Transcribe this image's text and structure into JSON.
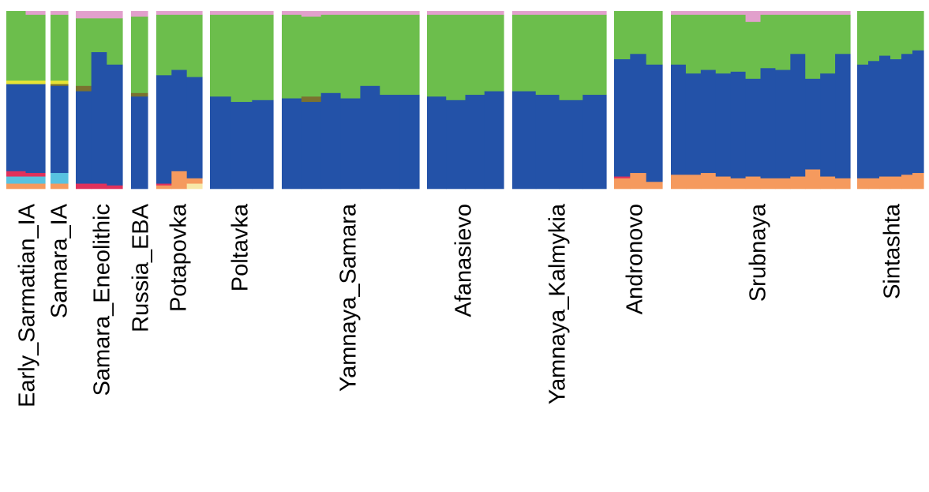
{
  "chart_data": {
    "type": "bar",
    "stacked": true,
    "normalized": true,
    "ylim": [
      0,
      1
    ],
    "grid": false,
    "legend": "none",
    "component_colors": {
      "orange": "#f59a5e",
      "cyan": "#58c2e0",
      "crimson": "#e0315b",
      "blue": "#2352a8",
      "olive": "#7a7230",
      "yellow": "#e6e335",
      "green": "#6cbe4c",
      "pink": "#e2a0cc"
    },
    "stack_order": [
      "orange",
      "cyan",
      "crimson",
      "blue",
      "olive",
      "yellow",
      "green",
      "pink"
    ],
    "groups": [
      {
        "label": "Early_Sarmatian_IA",
        "individuals": [
          {
            "cyan": 0.04,
            "orange": 0.03,
            "crimson": 0.03,
            "blue": 0.49,
            "yellow": 0.02,
            "green": 0.39
          },
          {
            "cyan": 0.04,
            "orange": 0.03,
            "crimson": 0.02,
            "blue": 0.5,
            "yellow": 0.02,
            "green": 0.37,
            "pink": 0.02
          }
        ]
      },
      {
        "label": "Samara_IA",
        "individuals": [
          {
            "cyan": 0.06,
            "orange": 0.03,
            "blue": 0.49,
            "olive": 0.01,
            "yellow": 0.02,
            "green": 0.37,
            "pink": 0.02
          }
        ]
      },
      {
        "label": "Samara_Eneolithic",
        "individuals": [
          {
            "crimson": 0.03,
            "blue": 0.52,
            "olive": 0.03,
            "green": 0.38,
            "pink": 0.04
          },
          {
            "crimson": 0.03,
            "blue": 0.74,
            "green": 0.19,
            "pink": 0.04
          },
          {
            "crimson": 0.02,
            "blue": 0.68,
            "green": 0.26,
            "pink": 0.04
          }
        ]
      },
      {
        "label": "Russia_EBA",
        "individuals": [
          {
            "blue": 0.52,
            "olive": 0.02,
            "green": 0.43,
            "pink": 0.03
          }
        ]
      },
      {
        "label": "Potapovka",
        "individuals": [
          {
            "orange": 0.02,
            "crimson": 0.01,
            "blue": 0.61,
            "green": 0.34,
            "pink": 0.02
          },
          {
            "orange": 0.1,
            "blue": 0.57,
            "green": 0.31,
            "pink": 0.02
          },
          {
            "cream": 0.03,
            "orange": 0.03,
            "blue": 0.57,
            "green": 0.35,
            "pink": 0.02
          }
        ]
      },
      {
        "label": "Poltavka",
        "individuals": [
          {
            "blue": 0.52,
            "green": 0.46,
            "pink": 0.02
          },
          {
            "blue": 0.49,
            "green": 0.49,
            "pink": 0.02
          },
          {
            "blue": 0.5,
            "green": 0.48,
            "pink": 0.02
          }
        ]
      },
      {
        "label": "Yamnaya_Samara",
        "individuals": [
          {
            "blue": 0.51,
            "green": 0.47,
            "pink": 0.02
          },
          {
            "blue": 0.49,
            "olive": 0.03,
            "green": 0.45,
            "pink": 0.03
          },
          {
            "blue": 0.54,
            "green": 0.44,
            "pink": 0.02
          },
          {
            "blue": 0.51,
            "green": 0.47,
            "pink": 0.02
          },
          {
            "blue": 0.58,
            "green": 0.4,
            "pink": 0.02
          },
          {
            "blue": 0.53,
            "green": 0.45,
            "pink": 0.02
          },
          {
            "blue": 0.53,
            "green": 0.45,
            "pink": 0.02
          }
        ]
      },
      {
        "label": "Afanasievo",
        "individuals": [
          {
            "blue": 0.52,
            "green": 0.46,
            "pink": 0.02
          },
          {
            "blue": 0.5,
            "green": 0.48,
            "pink": 0.02
          },
          {
            "blue": 0.53,
            "green": 0.45,
            "pink": 0.02
          },
          {
            "blue": 0.55,
            "green": 0.43,
            "pink": 0.02
          }
        ]
      },
      {
        "label": "Yamnaya_Kalmykia",
        "individuals": [
          {
            "blue": 0.55,
            "green": 0.43,
            "pink": 0.02
          },
          {
            "blue": 0.53,
            "green": 0.45,
            "pink": 0.02
          },
          {
            "blue": 0.5,
            "green": 0.48,
            "pink": 0.02
          },
          {
            "blue": 0.53,
            "green": 0.45,
            "pink": 0.02
          }
        ]
      },
      {
        "label": "Andronovo",
        "individuals": [
          {
            "orange": 0.06,
            "crimson": 0.01,
            "blue": 0.66,
            "green": 0.27
          },
          {
            "orange": 0.09,
            "blue": 0.67,
            "green": 0.24
          },
          {
            "orange": 0.04,
            "blue": 0.66,
            "green": 0.3
          }
        ]
      },
      {
        "label": "Srubnaya",
        "individuals": [
          {
            "orange": 0.08,
            "blue": 0.62,
            "green": 0.28,
            "pink": 0.02
          },
          {
            "orange": 0.08,
            "blue": 0.57,
            "green": 0.33,
            "pink": 0.02
          },
          {
            "orange": 0.09,
            "blue": 0.58,
            "green": 0.31,
            "pink": 0.02
          },
          {
            "orange": 0.07,
            "blue": 0.58,
            "green": 0.33,
            "pink": 0.02
          },
          {
            "orange": 0.06,
            "blue": 0.6,
            "green": 0.32,
            "pink": 0.02
          },
          {
            "orange": 0.07,
            "blue": 0.55,
            "green": 0.32,
            "pink": 0.06
          },
          {
            "orange": 0.06,
            "blue": 0.62,
            "green": 0.3,
            "pink": 0.02
          },
          {
            "orange": 0.06,
            "blue": 0.61,
            "green": 0.31,
            "pink": 0.02
          },
          {
            "orange": 0.07,
            "blue": 0.69,
            "green": 0.22,
            "pink": 0.02
          },
          {
            "orange": 0.11,
            "blue": 0.51,
            "green": 0.36,
            "pink": 0.02
          },
          {
            "orange": 0.07,
            "blue": 0.58,
            "green": 0.33,
            "pink": 0.02
          },
          {
            "orange": 0.06,
            "blue": 0.7,
            "green": 0.22,
            "pink": 0.02
          }
        ]
      },
      {
        "label": "Sintashta",
        "individuals": [
          {
            "orange": 0.06,
            "blue": 0.64,
            "green": 0.3
          },
          {
            "orange": 0.06,
            "blue": 0.66,
            "green": 0.28
          },
          {
            "orange": 0.07,
            "blue": 0.68,
            "green": 0.25
          },
          {
            "orange": 0.07,
            "blue": 0.66,
            "green": 0.27
          },
          {
            "orange": 0.08,
            "blue": 0.68,
            "green": 0.24
          },
          {
            "orange": 0.09,
            "blue": 0.69,
            "green": 0.22
          }
        ]
      }
    ]
  }
}
